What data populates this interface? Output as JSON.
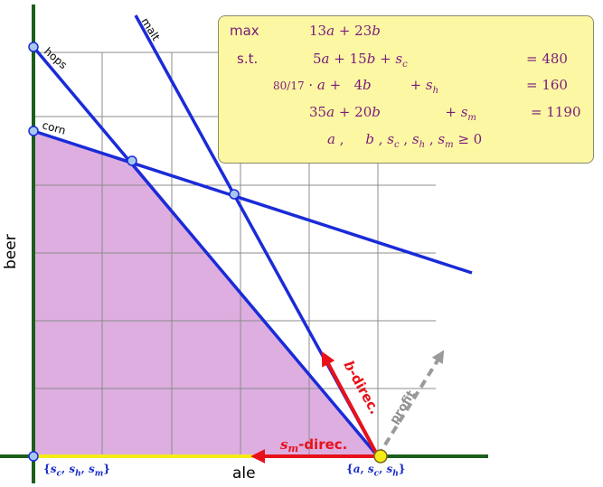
{
  "axes": {
    "x_label": "ale",
    "y_label": "beer"
  },
  "constraints": [
    {
      "id": "hops",
      "label": "hops"
    },
    {
      "id": "corn",
      "label": "corn"
    },
    {
      "id": "malt",
      "label": "malt"
    }
  ],
  "vertex_labels": {
    "origin": "{s_c, s_h, s_m}",
    "current": "{a, s_c, s_h}"
  },
  "directions": {
    "sm": {
      "var": "s",
      "sub": "m",
      "suffix": "-direc."
    },
    "b": {
      "var": "b",
      "suffix": "-direc."
    },
    "profit": "profit"
  },
  "lp": {
    "max_kw": "max",
    "st_kw": "s.t.",
    "objective": "13a + 23b",
    "rows": [
      {
        "lhs": "5a + 15b + s_c",
        "rhs": "= 480"
      },
      {
        "lhs": "80/17 · a + 4b + s_h",
        "rhs": "= 160"
      },
      {
        "lhs": "35a + 20b + s_m",
        "rhs": "= 1190"
      },
      {
        "lhs": "a , b , s_c , s_h , s_m ≥ 0",
        "rhs": ""
      }
    ]
  },
  "colors": {
    "feasible": "#ddaedf",
    "axis": "#1c5e1c",
    "constraint": "#1a2bd8",
    "vertex_fill": "#a8c8ee",
    "current_vertex": "#f5ec17",
    "direction_arrow": "#e8111a",
    "profit_arrow": "#9a9a9a",
    "segment": "#f5ec17",
    "lp_box": "#fbf7a3",
    "lp_text": "#7a1a7a"
  }
}
